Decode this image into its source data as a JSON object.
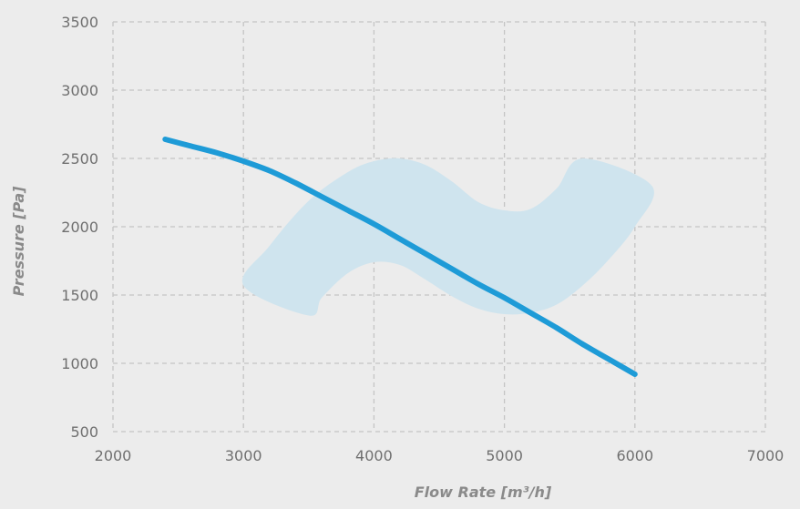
{
  "chart_data": {
    "type": "line",
    "title": "",
    "xlabel": "Flow Rate [m³/h]",
    "ylabel": "Pressure [Pa]",
    "xlim": [
      2000,
      7000
    ],
    "ylim": [
      500,
      3500
    ],
    "x_ticks": [
      2000,
      3000,
      4000,
      5000,
      6000,
      7000
    ],
    "y_ticks": [
      500,
      1000,
      1500,
      2000,
      2500,
      3000,
      3500
    ],
    "grid": true,
    "grid_style": "dashed",
    "legend": "none",
    "series": [
      {
        "color": "#1e9bd7",
        "x": [
          2400,
          2600,
          2800,
          3000,
          3200,
          3400,
          3600,
          3800,
          4000,
          4200,
          4400,
          4600,
          4800,
          5000,
          5200,
          5400,
          5600,
          5800,
          6000
        ],
        "y": [
          2640,
          2590,
          2540,
          2480,
          2410,
          2320,
          2220,
          2120,
          2020,
          1910,
          1800,
          1690,
          1580,
          1480,
          1370,
          1260,
          1140,
          1030,
          920
        ]
      }
    ],
    "operating_region": {
      "color": "#cfe4ee",
      "upper_boundary": {
        "x": [
          3000,
          3200,
          3500,
          3800,
          4000,
          4200,
          4400,
          4600,
          4800,
          5000,
          5200,
          5400,
          5600
        ],
        "y": [
          1570,
          1860,
          2190,
          2400,
          2480,
          2500,
          2450,
          2330,
          2180,
          2120,
          2130,
          2280,
          2500
        ]
      },
      "right_edge": {
        "x": [
          5600,
          6130
        ],
        "y": [
          2500,
          2300
        ]
      },
      "lower_boundary": {
        "x": [
          6130,
          6000,
          5800,
          5600,
          5400,
          5200,
          5000,
          4800,
          4600,
          4400,
          4200,
          4000,
          3800,
          3600,
          3500
        ],
        "y": [
          2300,
          2000,
          1760,
          1570,
          1430,
          1370,
          1360,
          1400,
          1490,
          1610,
          1720,
          1740,
          1660,
          1480,
          1350
        ]
      },
      "left_edge": {
        "x": [
          3500,
          3000
        ],
        "y": [
          1350,
          1570
        ]
      }
    }
  }
}
